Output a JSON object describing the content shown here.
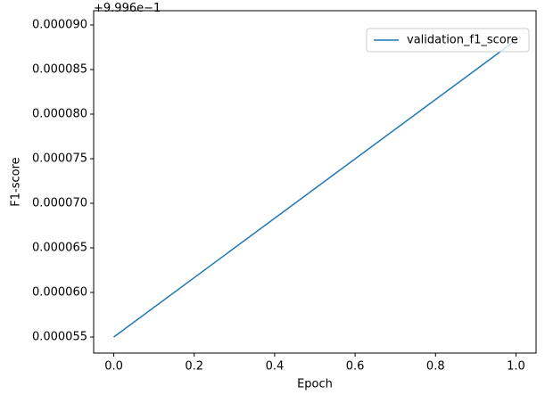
{
  "chart_data": {
    "type": "line",
    "x_label": "Epoch",
    "y_label": "F1-score",
    "y_offset_text": "+9.996e−1",
    "x": [
      0,
      1
    ],
    "series": [
      {
        "name": "validation_f1_score",
        "color": "#1f77b4",
        "values": [
          5.5e-05,
          8.83e-05
        ]
      }
    ],
    "xlim": [
      -0.05,
      1.05
    ],
    "xticks": [
      {
        "value": 0,
        "label": "0.0"
      },
      0.2,
      0.4,
      0.6,
      0.8,
      {
        "value": 1,
        "label": "1.0"
      }
    ],
    "ylim": [
      5.32e-05,
      9.16e-05
    ],
    "yticks": [
      5.5e-05,
      {
        "value": 6e-05,
        "label": "0.000060"
      },
      6.5e-05,
      {
        "value": 7e-05,
        "label": "0.000070"
      },
      7.5e-05,
      {
        "value": 8e-05,
        "label": "0.000080"
      },
      8.5e-05,
      {
        "value": 9e-05,
        "label": "0.000090"
      }
    ],
    "legend": "upper right"
  }
}
